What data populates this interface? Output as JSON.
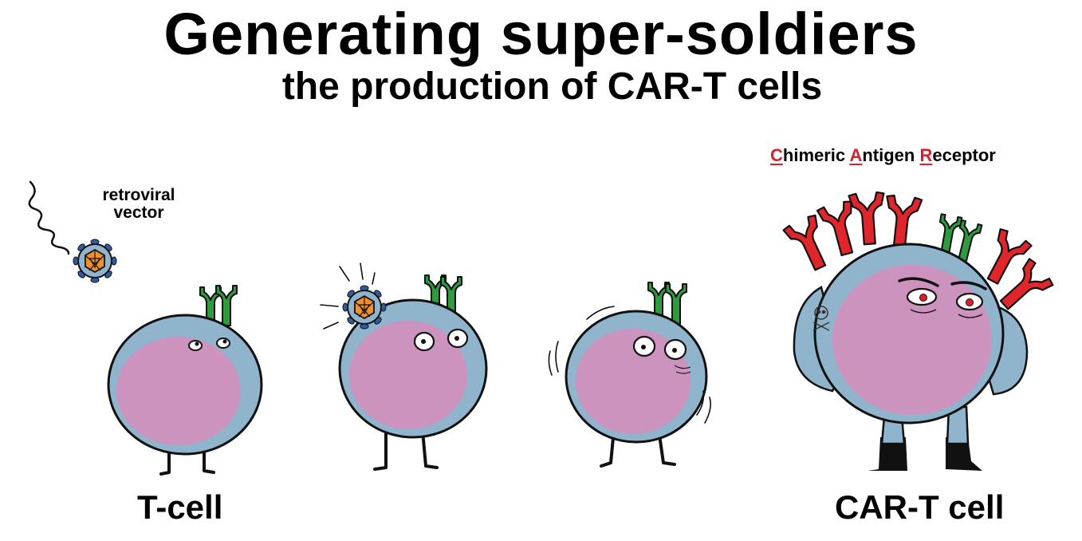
{
  "header": {
    "title": "Generating super-soldiers",
    "subtitle": "the production of CAR-T cells"
  },
  "car_label": {
    "parts": [
      {
        "initial": "C",
        "rest": "himeric"
      },
      {
        "initial": "A",
        "rest": "ntigen"
      },
      {
        "initial": "R",
        "rest": "eceptor"
      }
    ]
  },
  "vector_label": {
    "line1": "retroviral",
    "line2": "vector"
  },
  "stage_labels": {
    "first": "T-cell",
    "last": "CAR-T cell"
  },
  "colors": {
    "membrane": "#8fb4cc",
    "cytoplasm": "#cc93bf",
    "receptor_native": "#2f9a3f",
    "receptor_car": "#e0262b",
    "capsid": "#f0902c",
    "envelope_protein": "#2f5c9f",
    "highlight": "#d9202a"
  }
}
